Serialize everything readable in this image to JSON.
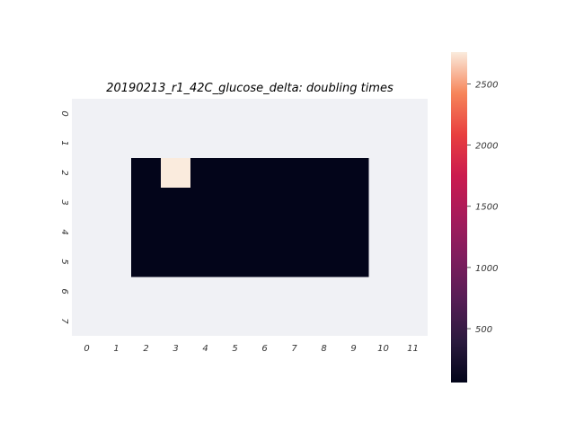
{
  "chart_data": {
    "type": "heatmap",
    "title": "20190213_r1_42C_glucose_delta: doubling times",
    "xlabel": "",
    "ylabel": "",
    "x_tick_labels": [
      "0",
      "1",
      "2",
      "3",
      "4",
      "5",
      "6",
      "7",
      "8",
      "9",
      "10",
      "11"
    ],
    "y_tick_labels": [
      "0",
      "1",
      "2",
      "3",
      "4",
      "5",
      "6",
      "7"
    ],
    "colorbar": {
      "colormap": "rocket",
      "vmin": 60,
      "vmax": 2760,
      "ticks": [
        500,
        1000,
        1500,
        2000,
        2500
      ],
      "tick_labels": [
        "500",
        "1000",
        "1500",
        "2000",
        "2500"
      ]
    },
    "missing_color": "#f0f1f5",
    "values": [
      [
        null,
        null,
        null,
        null,
        null,
        null,
        null,
        null,
        null,
        null,
        null,
        null
      ],
      [
        null,
        null,
        null,
        null,
        null,
        null,
        null,
        null,
        null,
        null,
        null,
        null
      ],
      [
        null,
        null,
        60,
        2760,
        60,
        60,
        60,
        60,
        60,
        60,
        null,
        null
      ],
      [
        null,
        null,
        60,
        60,
        60,
        60,
        60,
        60,
        60,
        60,
        null,
        null
      ],
      [
        null,
        null,
        60,
        60,
        60,
        60,
        60,
        60,
        60,
        60,
        null,
        null
      ],
      [
        null,
        null,
        60,
        60,
        60,
        60,
        60,
        60,
        60,
        60,
        null,
        null
      ],
      [
        null,
        null,
        null,
        null,
        null,
        null,
        null,
        null,
        null,
        null,
        null,
        null
      ],
      [
        null,
        null,
        null,
        null,
        null,
        null,
        null,
        null,
        null,
        null,
        null,
        null
      ]
    ]
  }
}
